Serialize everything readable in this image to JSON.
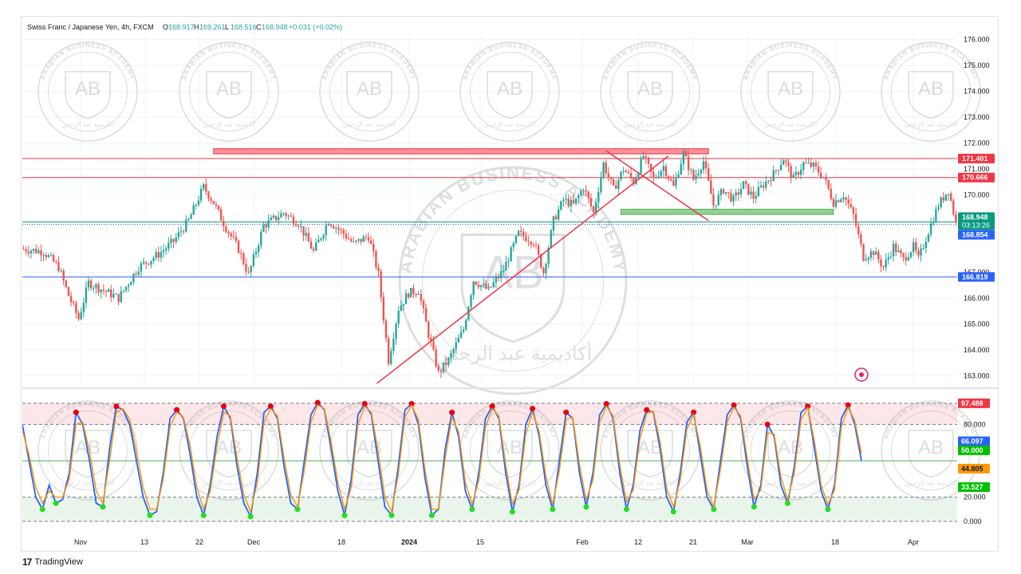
{
  "header": {
    "symbol": "Swiss Franc / Japanese Yen, 4h, FXCM",
    "o_label": "O",
    "o": "168.917",
    "h_label": "H",
    "h": "169.261",
    "l_label": "L",
    "l": "168.516",
    "c_label": "C",
    "c": "168.948",
    "change": "+0.031 (+0.02%)"
  },
  "watermark": {
    "monogram": "AB",
    "ring_text": "ARABIAN BUSINESS ACADEMY",
    "arabic_text": "أكاديمية عبد الرحمن"
  },
  "brand": "TradingView",
  "colors": {
    "up": "#26a69a",
    "down": "#ef5350",
    "resistance_line": "#f23645",
    "support_line": "#2962ff",
    "stoch_k": "#2962ff",
    "stoch_d": "#ff9800"
  },
  "chart_data": [
    {
      "type": "candlestick",
      "title": "Swiss Franc / Japanese Yen, 4h, FXCM",
      "x_ticks": [
        "Nov",
        "13",
        "22",
        "Dec",
        "18",
        "2024",
        "15",
        "Feb",
        "12",
        "21",
        "Mar",
        "18",
        "Apr"
      ],
      "y_ticks": [
        "176.000",
        "175.000",
        "174.000",
        "173.000",
        "172.000",
        "171.000",
        "170.000",
        "167.000",
        "166.000",
        "165.000",
        "164.000",
        "163.000"
      ],
      "ylim": [
        162.7,
        176.3
      ],
      "close_path": [
        [
          0,
          167.9
        ],
        [
          8,
          167.8
        ],
        [
          14,
          167.2
        ],
        [
          18,
          166.1
        ],
        [
          22,
          165.2
        ],
        [
          26,
          166.6
        ],
        [
          32,
          166.3
        ],
        [
          38,
          166.0
        ],
        [
          46,
          167.2
        ],
        [
          54,
          167.7
        ],
        [
          60,
          168.2
        ],
        [
          66,
          169.0
        ],
        [
          72,
          170.3
        ],
        [
          76,
          169.7
        ],
        [
          80,
          168.9
        ],
        [
          86,
          167.9
        ],
        [
          90,
          166.9
        ],
        [
          96,
          168.8
        ],
        [
          104,
          169.3
        ],
        [
          110,
          168.9
        ],
        [
          116,
          167.8
        ],
        [
          122,
          169.0
        ],
        [
          128,
          168.5
        ],
        [
          132,
          168.1
        ],
        [
          138,
          168.4
        ],
        [
          142,
          166.9
        ],
        [
          146,
          163.6
        ],
        [
          150,
          165.6
        ],
        [
          154,
          166.2
        ],
        [
          158,
          166.3
        ],
        [
          162,
          164.6
        ],
        [
          166,
          163.1
        ],
        [
          170,
          163.6
        ],
        [
          176,
          164.8
        ],
        [
          180,
          166.7
        ],
        [
          186,
          166.3
        ],
        [
          192,
          167.1
        ],
        [
          198,
          168.5
        ],
        [
          204,
          168.2
        ],
        [
          208,
          167.0
        ],
        [
          212,
          169.0
        ],
        [
          216,
          169.8
        ],
        [
          220,
          169.6
        ],
        [
          224,
          170.3
        ],
        [
          228,
          169.3
        ],
        [
          232,
          171.2
        ],
        [
          236,
          170.2
        ],
        [
          240,
          171.0
        ],
        [
          244,
          170.5
        ],
        [
          248,
          171.5
        ],
        [
          252,
          170.6
        ],
        [
          256,
          171.1
        ],
        [
          260,
          170.3
        ],
        [
          264,
          171.6
        ],
        [
          268,
          170.6
        ],
        [
          272,
          171.3
        ],
        [
          276,
          169.6
        ],
        [
          280,
          170.2
        ],
        [
          284,
          169.8
        ],
        [
          288,
          170.4
        ],
        [
          292,
          169.9
        ],
        [
          296,
          170.4
        ],
        [
          300,
          170.8
        ],
        [
          304,
          171.4
        ],
        [
          308,
          170.6
        ],
        [
          312,
          171.2
        ],
        [
          316,
          171.1
        ],
        [
          320,
          170.7
        ],
        [
          324,
          169.7
        ],
        [
          328,
          170.0
        ],
        [
          332,
          169.2
        ],
        [
          336,
          167.6
        ],
        [
          340,
          167.8
        ],
        [
          344,
          167.2
        ],
        [
          348,
          168.0
        ],
        [
          352,
          167.5
        ],
        [
          356,
          168.0
        ],
        [
          358,
          167.5
        ],
        [
          362,
          168.6
        ],
        [
          366,
          169.6
        ],
        [
          370,
          170.2
        ],
        [
          373,
          168.9
        ]
      ],
      "resistance_zone": {
        "from": 171.58,
        "to": 171.78,
        "x": [
          76,
          274
        ]
      },
      "support_zone": {
        "from": 169.24,
        "to": 169.44,
        "x": [
          239,
          324
        ]
      },
      "horizontal_levels": [
        {
          "value": 171.401,
          "label": "171.401",
          "color": "#f23645"
        },
        {
          "value": 170.666,
          "label": "170.666",
          "color": "#f23645"
        },
        {
          "value": 168.948,
          "label": "168.948",
          "sublabel": "03:13:26",
          "color": "#089981"
        },
        {
          "value": 168.854,
          "label": "168.854",
          "color": "#2962ff",
          "dotted": true
        },
        {
          "value": 166.819,
          "label": "166.819",
          "color": "#2962ff"
        }
      ],
      "trendlines": [
        {
          "from": [
            140,
            162.6
          ],
          "to": [
            258,
            171.5
          ]
        },
        {
          "from": [
            233,
            171.7
          ],
          "to": [
            274,
            169.0
          ]
        }
      ]
    },
    {
      "type": "line",
      "title": "Stochastic",
      "y_ticks": [
        "80.000",
        "20.000",
        "0.000"
      ],
      "ylim": [
        0,
        100
      ],
      "levels": [
        97.488,
        80,
        50,
        20,
        0
      ],
      "series": [
        {
          "values": [
            80,
            50,
            20,
            10,
            30,
            15,
            18,
            40,
            90,
            80,
            50,
            15,
            12,
            60,
            95,
            92,
            80,
            50,
            20,
            5,
            8,
            40,
            85,
            92,
            85,
            55,
            20,
            5,
            30,
            70,
            95,
            85,
            45,
            15,
            4,
            40,
            90,
            95,
            85,
            45,
            15,
            10,
            50,
            88,
            98,
            92,
            60,
            25,
            5,
            35,
            88,
            97,
            88,
            50,
            12,
            5,
            45,
            92,
            97,
            80,
            35,
            5,
            10,
            60,
            90,
            70,
            25,
            10,
            40,
            85,
            95,
            85,
            40,
            8,
            30,
            80,
            93,
            70,
            30,
            10,
            50,
            90,
            85,
            40,
            12,
            40,
            88,
            97,
            85,
            40,
            10,
            30,
            75,
            92,
            90,
            60,
            20,
            8,
            40,
            82,
            90,
            55,
            20,
            10,
            50,
            88,
            96,
            85,
            45,
            12,
            30,
            80,
            70,
            30,
            15,
            45,
            90,
            95,
            60,
            25,
            10,
            30,
            85,
            96,
            80,
            50
          ]
        },
        {
          "values": [
            75,
            55,
            28,
            15,
            25,
            20,
            20,
            35,
            80,
            82,
            58,
            25,
            15,
            50,
            90,
            93,
            84,
            58,
            28,
            10,
            10,
            35,
            78,
            90,
            86,
            62,
            28,
            10,
            25,
            62,
            90,
            87,
            52,
            22,
            8,
            32,
            82,
            93,
            87,
            52,
            22,
            12,
            42,
            82,
            96,
            93,
            66,
            32,
            10,
            28,
            80,
            95,
            90,
            58,
            20,
            8,
            38,
            86,
            96,
            84,
            42,
            10,
            10,
            52,
            86,
            74,
            32,
            14,
            34,
            78,
            93,
            87,
            47,
            14,
            26,
            72,
            90,
            74,
            37,
            14,
            42,
            84,
            86,
            47,
            18,
            34,
            82,
            95,
            87,
            47,
            16,
            26,
            68,
            89,
            91,
            66,
            27,
            12,
            34,
            76,
            88,
            62,
            26,
            12,
            43,
            82,
            94,
            87,
            52,
            18,
            26,
            73,
            72,
            37,
            18,
            40,
            84,
            94,
            66,
            30,
            14,
            26,
            78,
            94,
            83,
            56
          ]
        }
      ]
    }
  ],
  "stoch_labels": [
    {
      "value": 97.488,
      "label": "97.488",
      "color": "#f23645"
    },
    {
      "value": 66.097,
      "label": "66.097",
      "color": "#2962ff"
    },
    {
      "value": 56.0,
      "label": "50.000",
      "color": "#00c000"
    },
    {
      "value": 44.805,
      "label": "44.805",
      "color": "#ff9800"
    },
    {
      "value": 33.527,
      "label": "33.527",
      "color": "#00c000"
    }
  ]
}
